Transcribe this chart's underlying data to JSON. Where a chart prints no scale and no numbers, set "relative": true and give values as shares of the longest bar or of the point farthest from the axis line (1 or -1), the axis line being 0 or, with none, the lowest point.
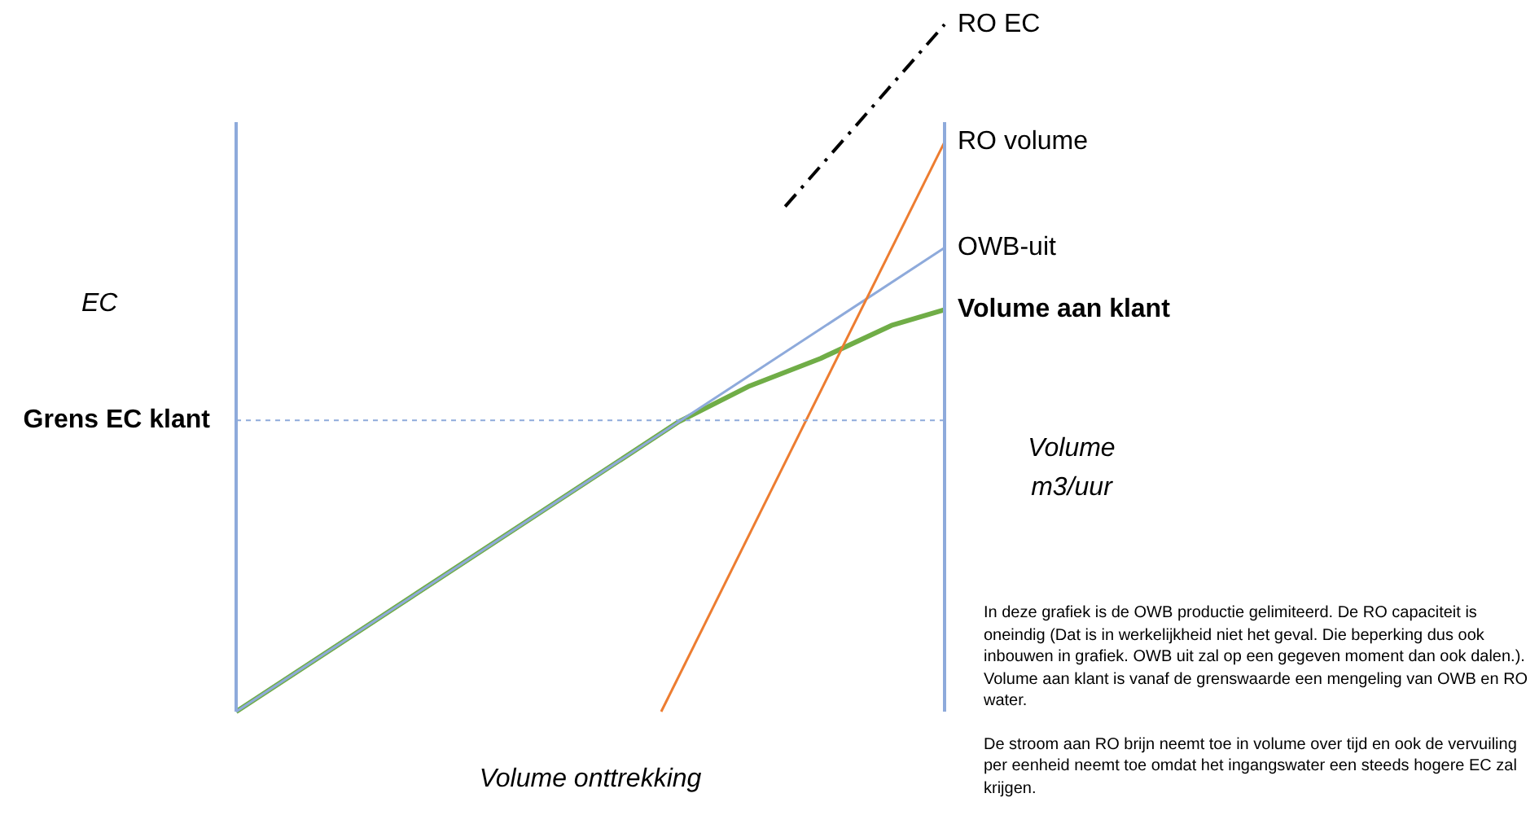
{
  "chart_data": {
    "type": "line",
    "relative": true,
    "xlabel": "Volume onttrekking",
    "ylabel": "EC",
    "y2label": "Volume m3/uur",
    "legend": false,
    "marker": "none",
    "categories": [
      null,
      null,
      null,
      null,
      null,
      null,
      null,
      null,
      null,
      null,
      null,
      null,
      null,
      null,
      null,
      null,
      null,
      null,
      null,
      null,
      null,
      null,
      null,
      null,
      null,
      null,
      null,
      null,
      null,
      null,
      null,
      null,
      null,
      null,
      null,
      null,
      null,
      null,
      null,
      null,
      null
    ],
    "series": [
      {
        "name": "RO EC",
        "color": "#000000",
        "line_style": "dashed",
        "values": [
          null,
          null,
          null,
          null,
          null,
          null,
          null,
          null,
          null,
          null,
          null,
          null,
          null,
          null,
          null,
          null,
          null,
          null,
          null,
          null,
          null,
          null,
          null,
          null,
          null,
          null,
          null,
          null,
          null,
          null,
          null,
          0.735,
          null,
          null,
          null,
          null,
          null,
          null,
          null,
          null,
          1
        ]
      },
      {
        "name": "RO volume",
        "color": "#ed7d31",
        "values": [
          null,
          null,
          null,
          null,
          null,
          null,
          null,
          null,
          null,
          null,
          null,
          null,
          null,
          null,
          null,
          null,
          null,
          null,
          null,
          null,
          null,
          null,
          null,
          null,
          0,
          null,
          null,
          null,
          null,
          null,
          null,
          null,
          null,
          null,
          null,
          null,
          null,
          null,
          null,
          null,
          0.829
        ]
      },
      {
        "name": "OWB-uit",
        "color": "#8eaadb",
        "values": [
          0,
          null,
          null,
          null,
          null,
          null,
          null,
          null,
          null,
          null,
          null,
          null,
          null,
          null,
          null,
          null,
          null,
          null,
          null,
          null,
          null,
          null,
          null,
          null,
          null,
          null,
          null,
          null,
          null,
          null,
          null,
          null,
          null,
          null,
          null,
          null,
          null,
          null,
          null,
          null,
          0.675
        ]
      },
      {
        "name": "Volume aan klant",
        "color": "#70ad47",
        "values": [
          0,
          null,
          null,
          null,
          null,
          null,
          null,
          null,
          null,
          null,
          null,
          null,
          null,
          null,
          null,
          null,
          null,
          null,
          null,
          null,
          null,
          null,
          null,
          null,
          null,
          0.422,
          null,
          null,
          null,
          0.474,
          null,
          null,
          null,
          0.514,
          null,
          null,
          null,
          0.562,
          null,
          null,
          0.585
        ]
      }
    ],
    "ref_lines": [
      {
        "axis": "y",
        "value": 0.424,
        "label": "Grens EC klant",
        "color": "#8eaadb",
        "line_style": "dotted"
      }
    ],
    "annotations": [
      "In deze grafiek is de OWB productie gelimiteerd. De RO capaciteit is oneindig (Dat is in werkelijkheid niet het geval. Die beperking dus ook inbouwen in grafiek. OWB uit zal op een gegeven moment dan ook dalen.).\nVolume aan klant is vanaf de grenswaarde een mengeling van OWB en RO water.",
      "De stroom aan RO brijn neemt toe in volume over tijd en ook de vervuiling per eenheid neemt toe omdat het ingangswater een steeds hogere EC zal krijgen."
    ]
  }
}
